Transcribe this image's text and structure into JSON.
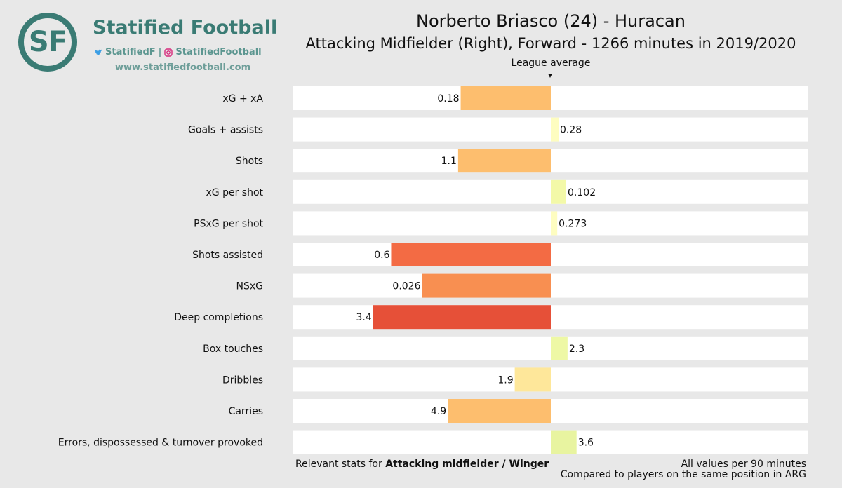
{
  "brand": {
    "monogram": "SF",
    "name": "Statified Football",
    "twitter": "StatifiedF",
    "separator": "|",
    "instagram": "StatifiedFootball",
    "website": "www.statifiedfootball.com",
    "color": "#3a7b74"
  },
  "header": {
    "title": "Norberto Briasco (24) - Huracan",
    "subtitle": "Attacking Midfielder (Right), Forward - 1266 minutes in 2019/2020",
    "average_label": "League average"
  },
  "footer": {
    "relevant_prefix": "Relevant stats for",
    "relevant_position": "Attacking midfielder / Winger",
    "per90": "All values per 90 minutes",
    "comparison": "Compared to players on the same position in ARG"
  },
  "chart_data": {
    "type": "bar",
    "orientation": "horizontal-diverging",
    "title": "Norberto Briasco (24) - Huracan",
    "reference_label": "League average",
    "xlim": [
      -1,
      1
    ],
    "categories": [
      "xG + xA",
      "Goals + assists",
      "Shots",
      "xG per shot",
      "PSxG per shot",
      "Shots assisted",
      "NSxG",
      "Deep completions",
      "Box touches",
      "Dribbles",
      "Carries",
      "Errors, dispossessed & turnover provoked"
    ],
    "value_labels": [
      "0.18",
      "0.28",
      "1.1",
      "0.102",
      "0.273",
      "0.6",
      "0.026",
      "3.4",
      "2.3",
      "1.9",
      "4.9",
      "3.6"
    ],
    "deviation": [
      -0.35,
      0.03,
      -0.36,
      0.06,
      0.025,
      -0.62,
      -0.5,
      -0.69,
      0.065,
      -0.14,
      -0.4,
      0.1
    ],
    "colors": [
      "#fdbe6e",
      "#fefdc0",
      "#fdbe6e",
      "#f3f9a8",
      "#fefdc0",
      "#f36b44",
      "#f88f51",
      "#e65038",
      "#eef8a5",
      "#fee79a",
      "#fdbe6e",
      "#e8f4a0"
    ]
  }
}
